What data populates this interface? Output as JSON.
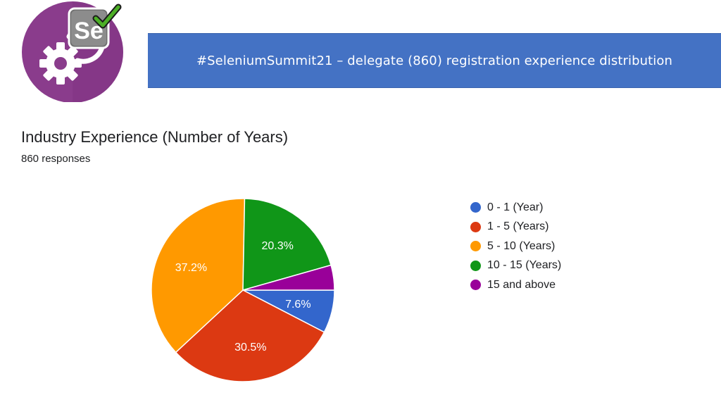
{
  "banner": {
    "text": "#SeleniumSummit21 – delegate (860) registration experience distribution",
    "color": "#4472c4"
  },
  "logo": {
    "text": "Se",
    "icon": "selenium-logo"
  },
  "chart_data": {
    "type": "pie",
    "title": "Industry Experience (Number of Years)",
    "subtitle": "860 responses",
    "legend_position": "right",
    "slices": [
      {
        "label": "0 - 1 (Year)",
        "value": 7.6,
        "display": "7.6%",
        "color": "#3366cc"
      },
      {
        "label": "1 - 5 (Years)",
        "value": 30.5,
        "display": "30.5%",
        "color": "#dc3912"
      },
      {
        "label": "5 - 10 (Years)",
        "value": 37.2,
        "display": "37.2%",
        "color": "#ff9900"
      },
      {
        "label": "10 - 15 (Years)",
        "value": 20.3,
        "display": "20.3%",
        "color": "#109618"
      },
      {
        "label": "15 and above",
        "value": 4.4,
        "display": "",
        "color": "#990099"
      }
    ]
  }
}
